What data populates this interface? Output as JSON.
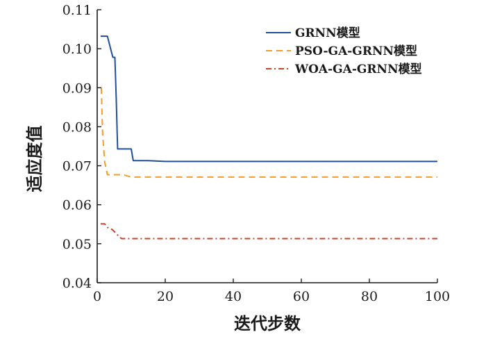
{
  "chart_data": {
    "type": "line",
    "xlabel": "迭代步数",
    "ylabel": "适应度值",
    "xlim": [
      0,
      100
    ],
    "ylim": [
      0.04,
      0.11
    ],
    "x_ticks": [
      0,
      20,
      40,
      60,
      80,
      100
    ],
    "y_ticks": [
      0.04,
      0.05,
      0.06,
      0.07,
      0.08,
      0.09,
      0.1,
      0.11
    ],
    "x_tick_labels": [
      "0",
      "20",
      "40",
      "60",
      "80",
      "100"
    ],
    "y_tick_labels": [
      "0.04",
      "0.05",
      "0.06",
      "0.07",
      "0.08",
      "0.09",
      "0.10",
      "0.11"
    ],
    "grid": false,
    "legend_position": "top-right",
    "series": [
      {
        "name": "GRNN模型",
        "color": "#1f4e9c",
        "dash": "solid",
        "x": [
          1,
          3,
          4,
          4.6,
          5.2,
          5.6,
          6.0,
          10,
          10.6,
          15,
          20,
          100
        ],
        "y": [
          0.1032,
          0.1032,
          0.0998,
          0.0978,
          0.0978,
          0.087,
          0.0743,
          0.0743,
          0.0713,
          0.0713,
          0.0711,
          0.0711
        ]
      },
      {
        "name": "PSO-GA-GRNN模型",
        "color": "#f39c2b",
        "dash": "dashed",
        "x": [
          1.2,
          1.6,
          2.2,
          3.0,
          7,
          8,
          10,
          100
        ],
        "y": [
          0.09,
          0.078,
          0.071,
          0.0677,
          0.0677,
          0.0676,
          0.0671,
          0.0671
        ],
        "y_display": [
          0.09,
          0.078,
          0.071,
          0.0677,
          0.0677,
          0.0676,
          0.0671,
          0.0671
        ]
      },
      {
        "name": "WOA-GA-GRNN模型",
        "color": "#c8432b",
        "dash": "dashdot",
        "x": [
          1,
          2.2,
          3,
          4.5,
          5.5,
          6.5,
          7.2,
          100
        ],
        "y": [
          0.0551,
          0.0551,
          0.0542,
          0.0536,
          0.0527,
          0.0518,
          0.0513,
          0.0513
        ]
      }
    ]
  }
}
